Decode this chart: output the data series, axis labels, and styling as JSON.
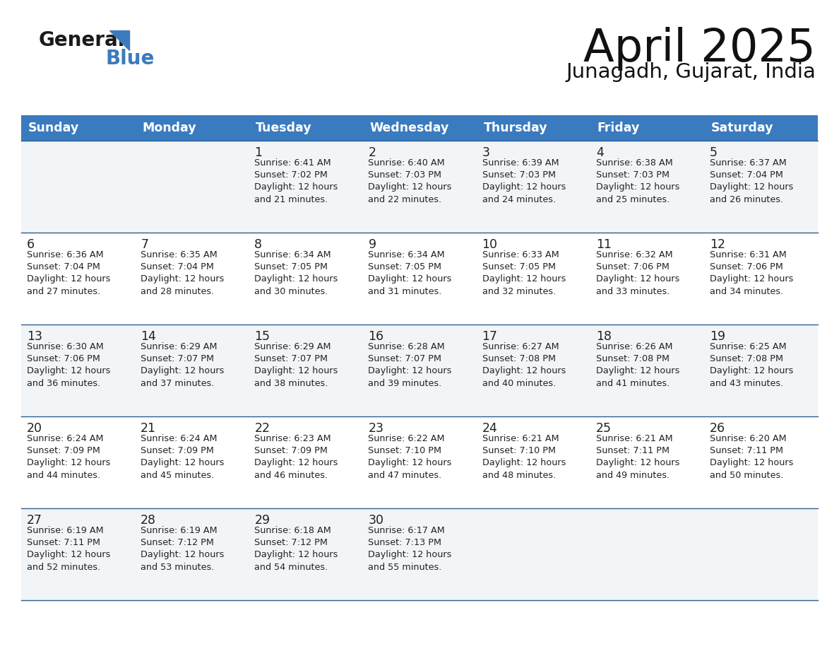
{
  "title": "April 2025",
  "subtitle": "Junagadh, Gujarat, India",
  "days_of_week": [
    "Sunday",
    "Monday",
    "Tuesday",
    "Wednesday",
    "Thursday",
    "Friday",
    "Saturday"
  ],
  "header_bg_color": "#3a7bbf",
  "header_text_color": "#ffffff",
  "row_bg_colors": [
    "#f2f5f8",
    "#ffffff",
    "#f2f5f8",
    "#ffffff",
    "#f2f5f8"
  ],
  "divider_color": "#2d5f8a",
  "text_color": "#222222",
  "calendar_data": [
    [
      {
        "day": null,
        "info": null
      },
      {
        "day": null,
        "info": null
      },
      {
        "day": 1,
        "info": "Sunrise: 6:41 AM\nSunset: 7:02 PM\nDaylight: 12 hours\nand 21 minutes."
      },
      {
        "day": 2,
        "info": "Sunrise: 6:40 AM\nSunset: 7:03 PM\nDaylight: 12 hours\nand 22 minutes."
      },
      {
        "day": 3,
        "info": "Sunrise: 6:39 AM\nSunset: 7:03 PM\nDaylight: 12 hours\nand 24 minutes."
      },
      {
        "day": 4,
        "info": "Sunrise: 6:38 AM\nSunset: 7:03 PM\nDaylight: 12 hours\nand 25 minutes."
      },
      {
        "day": 5,
        "info": "Sunrise: 6:37 AM\nSunset: 7:04 PM\nDaylight: 12 hours\nand 26 minutes."
      }
    ],
    [
      {
        "day": 6,
        "info": "Sunrise: 6:36 AM\nSunset: 7:04 PM\nDaylight: 12 hours\nand 27 minutes."
      },
      {
        "day": 7,
        "info": "Sunrise: 6:35 AM\nSunset: 7:04 PM\nDaylight: 12 hours\nand 28 minutes."
      },
      {
        "day": 8,
        "info": "Sunrise: 6:34 AM\nSunset: 7:05 PM\nDaylight: 12 hours\nand 30 minutes."
      },
      {
        "day": 9,
        "info": "Sunrise: 6:34 AM\nSunset: 7:05 PM\nDaylight: 12 hours\nand 31 minutes."
      },
      {
        "day": 10,
        "info": "Sunrise: 6:33 AM\nSunset: 7:05 PM\nDaylight: 12 hours\nand 32 minutes."
      },
      {
        "day": 11,
        "info": "Sunrise: 6:32 AM\nSunset: 7:06 PM\nDaylight: 12 hours\nand 33 minutes."
      },
      {
        "day": 12,
        "info": "Sunrise: 6:31 AM\nSunset: 7:06 PM\nDaylight: 12 hours\nand 34 minutes."
      }
    ],
    [
      {
        "day": 13,
        "info": "Sunrise: 6:30 AM\nSunset: 7:06 PM\nDaylight: 12 hours\nand 36 minutes."
      },
      {
        "day": 14,
        "info": "Sunrise: 6:29 AM\nSunset: 7:07 PM\nDaylight: 12 hours\nand 37 minutes."
      },
      {
        "day": 15,
        "info": "Sunrise: 6:29 AM\nSunset: 7:07 PM\nDaylight: 12 hours\nand 38 minutes."
      },
      {
        "day": 16,
        "info": "Sunrise: 6:28 AM\nSunset: 7:07 PM\nDaylight: 12 hours\nand 39 minutes."
      },
      {
        "day": 17,
        "info": "Sunrise: 6:27 AM\nSunset: 7:08 PM\nDaylight: 12 hours\nand 40 minutes."
      },
      {
        "day": 18,
        "info": "Sunrise: 6:26 AM\nSunset: 7:08 PM\nDaylight: 12 hours\nand 41 minutes."
      },
      {
        "day": 19,
        "info": "Sunrise: 6:25 AM\nSunset: 7:08 PM\nDaylight: 12 hours\nand 43 minutes."
      }
    ],
    [
      {
        "day": 20,
        "info": "Sunrise: 6:24 AM\nSunset: 7:09 PM\nDaylight: 12 hours\nand 44 minutes."
      },
      {
        "day": 21,
        "info": "Sunrise: 6:24 AM\nSunset: 7:09 PM\nDaylight: 12 hours\nand 45 minutes."
      },
      {
        "day": 22,
        "info": "Sunrise: 6:23 AM\nSunset: 7:09 PM\nDaylight: 12 hours\nand 46 minutes."
      },
      {
        "day": 23,
        "info": "Sunrise: 6:22 AM\nSunset: 7:10 PM\nDaylight: 12 hours\nand 47 minutes."
      },
      {
        "day": 24,
        "info": "Sunrise: 6:21 AM\nSunset: 7:10 PM\nDaylight: 12 hours\nand 48 minutes."
      },
      {
        "day": 25,
        "info": "Sunrise: 6:21 AM\nSunset: 7:11 PM\nDaylight: 12 hours\nand 49 minutes."
      },
      {
        "day": 26,
        "info": "Sunrise: 6:20 AM\nSunset: 7:11 PM\nDaylight: 12 hours\nand 50 minutes."
      }
    ],
    [
      {
        "day": 27,
        "info": "Sunrise: 6:19 AM\nSunset: 7:11 PM\nDaylight: 12 hours\nand 52 minutes."
      },
      {
        "day": 28,
        "info": "Sunrise: 6:19 AM\nSunset: 7:12 PM\nDaylight: 12 hours\nand 53 minutes."
      },
      {
        "day": 29,
        "info": "Sunrise: 6:18 AM\nSunset: 7:12 PM\nDaylight: 12 hours\nand 54 minutes."
      },
      {
        "day": 30,
        "info": "Sunrise: 6:17 AM\nSunset: 7:13 PM\nDaylight: 12 hours\nand 55 minutes."
      },
      {
        "day": null,
        "info": null
      },
      {
        "day": null,
        "info": null
      },
      {
        "day": null,
        "info": null
      }
    ]
  ],
  "logo_general_color": "#1a1a1a",
  "logo_blue_color": "#3a7bbf",
  "logo_triangle_color": "#3a7bbf",
  "fig_width": 11.88,
  "fig_height": 9.18,
  "fig_dpi": 100
}
